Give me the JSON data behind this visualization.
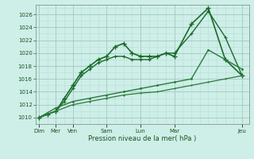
{
  "title": "Pression niveau de la mer( hPa )",
  "background_color": "#ceeee8",
  "grid_color_major": "#a0c8c0",
  "grid_color_minor": "#b8ddd8",
  "ylim": [
    1009,
    1027.5
  ],
  "yticks": [
    1010,
    1012,
    1014,
    1016,
    1018,
    1020,
    1022,
    1024,
    1026
  ],
  "xlim": [
    -0.2,
    12.4
  ],
  "x_tick_positions": [
    0,
    1,
    2,
    4,
    6,
    8,
    12
  ],
  "x_tick_labels": [
    "Dim",
    "Mer",
    "Ven",
    "Sam",
    "Lun",
    "Mar",
    "Jeu"
  ],
  "series": [
    {
      "x": [
        0,
        0.5,
        1,
        1.5,
        2,
        2.5,
        3,
        3.5,
        4,
        4.5,
        5,
        5.5,
        6,
        6.5,
        7,
        7.5,
        8,
        9,
        10,
        11,
        12
      ],
      "y": [
        1010,
        1010.5,
        1011,
        1013,
        1015,
        1017,
        1018,
        1019,
        1019.5,
        1021,
        1021.5,
        1020,
        1019.5,
        1019.5,
        1019.5,
        1020,
        1019.5,
        1024.5,
        1027,
        1019,
        1016.5
      ],
      "color": "#1a6b2a",
      "linewidth": 1.2,
      "marker": "+",
      "markersize": 4,
      "markeredgewidth": 1.0
    },
    {
      "x": [
        0,
        0.5,
        1,
        1.5,
        2,
        2.5,
        3,
        3.5,
        4,
        4.5,
        5,
        5.5,
        6,
        6.5,
        7,
        7.5,
        8,
        9,
        10,
        11,
        12
      ],
      "y": [
        1010,
        1010.5,
        1011,
        1012.5,
        1014.5,
        1016.5,
        1017.5,
        1018.5,
        1019,
        1019.5,
        1019.5,
        1019,
        1019,
        1019,
        1019.5,
        1020,
        1020,
        1023,
        1026.5,
        1022.5,
        1016.5
      ],
      "color": "#1a6b2a",
      "linewidth": 1.0,
      "marker": "+",
      "markersize": 3,
      "markeredgewidth": 0.8
    },
    {
      "x": [
        0,
        1,
        2,
        3,
        4,
        5,
        6,
        7,
        8,
        9,
        10,
        11,
        12
      ],
      "y": [
        1010,
        1011.5,
        1012.5,
        1013.0,
        1013.5,
        1014.0,
        1014.5,
        1015.0,
        1015.5,
        1016.0,
        1020.5,
        1019.0,
        1017.5
      ],
      "color": "#2a7a3a",
      "linewidth": 1.0,
      "marker": ".",
      "markersize": 3,
      "markeredgewidth": 0.5
    },
    {
      "x": [
        0,
        1,
        2,
        3,
        4,
        5,
        6,
        7,
        8,
        9,
        10,
        11,
        12
      ],
      "y": [
        1010,
        1011,
        1012,
        1012.5,
        1013.0,
        1013.5,
        1013.8,
        1014.0,
        1014.5,
        1015.0,
        1015.5,
        1016.0,
        1016.5
      ],
      "color": "#2a7a3a",
      "linewidth": 0.9,
      "marker": ".",
      "markersize": 2,
      "markeredgewidth": 0.5
    }
  ]
}
